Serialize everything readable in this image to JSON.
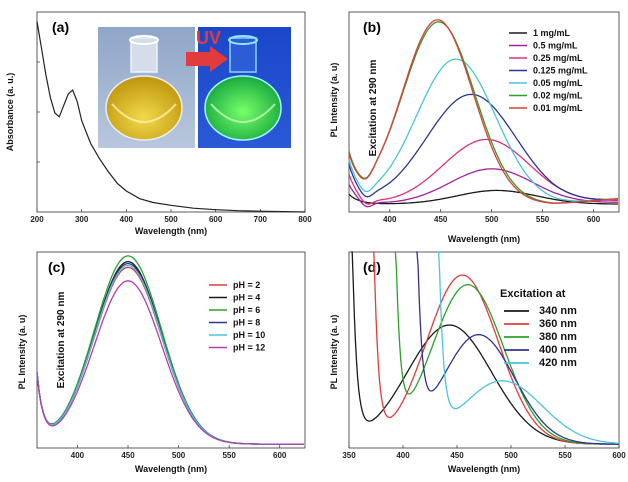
{
  "figure": {
    "panels": [
      "(a)",
      "(b)",
      "(c)",
      "(d)"
    ],
    "inset": {
      "arrow_label": "UV"
    }
  },
  "chart_data": [
    {
      "id": "a",
      "type": "line",
      "panel_label": "(a)",
      "xlabel": "Wavelength (nm)",
      "ylabel": "Absorbance (a. u.)",
      "xlim": [
        200,
        800
      ],
      "xticks": [
        200,
        300,
        400,
        500,
        600,
        700,
        800
      ],
      "series": [
        {
          "color": "#222222",
          "x": [
            200,
            210,
            220,
            230,
            240,
            250,
            260,
            270,
            280,
            290,
            300,
            320,
            340,
            360,
            380,
            400,
            430,
            460,
            500,
            550,
            600,
            650,
            700,
            800
          ],
          "y": [
            1.0,
            0.86,
            0.72,
            0.6,
            0.52,
            0.5,
            0.56,
            0.62,
            0.64,
            0.58,
            0.48,
            0.36,
            0.28,
            0.21,
            0.15,
            0.11,
            0.07,
            0.05,
            0.035,
            0.02,
            0.012,
            0.007,
            0.004,
            0.0
          ]
        }
      ]
    },
    {
      "id": "b",
      "type": "line",
      "panel_label": "(b)",
      "xlabel": "Wavelength (nm)",
      "ylabel": "PL Intensity (a. u)",
      "annotation": "Excitation at 290 nm",
      "xlim": [
        360,
        625
      ],
      "xticks": [
        400,
        450,
        500,
        550,
        600
      ],
      "legend_position": "top-right",
      "series": [
        {
          "name": "1 mg/mL",
          "color": "#1a1a1a",
          "peak": 505,
          "amp": 0.07,
          "width": 55,
          "base": 0.0
        },
        {
          "name": "0.5 mg/mL",
          "color": "#a020a0",
          "peak": 500,
          "amp": 0.18,
          "width": 58,
          "base": 0.05
        },
        {
          "name": "0.25 mg/mL",
          "color": "#e0307a",
          "peak": 495,
          "amp": 0.33,
          "width": 60,
          "base": 0.1
        },
        {
          "name": "0.125 mg/mL",
          "color": "#2f3590",
          "peak": 480,
          "amp": 0.56,
          "width": 62,
          "base": 0.14
        },
        {
          "name": "0.05 mg/mL",
          "color": "#4cc3d9",
          "peak": 465,
          "amp": 0.74,
          "width": 55,
          "base": 0.16
        },
        {
          "name": "0.02 mg/mL",
          "color": "#2ca02c",
          "peak": 448,
          "amp": 0.93,
          "width": 50,
          "base": 0.18
        },
        {
          "name": "0.01 mg/mL",
          "color": "#e23b3b",
          "peak": 447,
          "amp": 0.94,
          "width": 49,
          "base": 0.17
        }
      ]
    },
    {
      "id": "c",
      "type": "line",
      "panel_label": "(c)",
      "xlabel": "Wavelength (nm)",
      "ylabel": "PL Intensity (a. u)",
      "annotation": "Excitation at 290 nm",
      "xlim": [
        360,
        625
      ],
      "xticks": [
        400,
        450,
        500,
        550,
        600
      ],
      "legend_position": "top-right",
      "series": [
        {
          "name": "pH = 2",
          "color": "#e23b3b",
          "peak": 450,
          "amp": 0.92,
          "width": 47
        },
        {
          "name": "pH = 4",
          "color": "#1a1a1a",
          "peak": 450,
          "amp": 0.95,
          "width": 47
        },
        {
          "name": "pH = 6",
          "color": "#2ca02c",
          "peak": 450,
          "amp": 0.98,
          "width": 47
        },
        {
          "name": "pH = 8",
          "color": "#2f3590",
          "peak": 450,
          "amp": 0.94,
          "width": 47
        },
        {
          "name": "pH = 10",
          "color": "#4cc3d9",
          "peak": 450,
          "amp": 0.93,
          "width": 47
        },
        {
          "name": "pH = 12",
          "color": "#b040b0",
          "peak": 450,
          "amp": 0.85,
          "width": 47
        }
      ]
    },
    {
      "id": "d",
      "type": "line",
      "panel_label": "(d)",
      "xlabel": "Wavelength (nm)",
      "ylabel": "PL Intensity (a. u)",
      "legend_title": "Excitation at",
      "xlim": [
        350,
        600
      ],
      "xticks": [
        350,
        400,
        450,
        500,
        550,
        600
      ],
      "legend_position": "right",
      "series": [
        {
          "name": "340  nm",
          "color": "#1a1a1a",
          "ex": 340,
          "peak": 443,
          "amp": 0.62,
          "width": 55
        },
        {
          "name": "360  nm",
          "color": "#e23b3b",
          "ex": 360,
          "peak": 455,
          "amp": 0.88,
          "width": 47
        },
        {
          "name": "380  nm",
          "color": "#2ca02c",
          "ex": 380,
          "peak": 460,
          "amp": 0.83,
          "width": 47
        },
        {
          "name": "400  nm",
          "color": "#2f3590",
          "ex": 400,
          "peak": 470,
          "amp": 0.57,
          "width": 47
        },
        {
          "name": "420  nm",
          "color": "#4cc3d9",
          "ex": 420,
          "peak": 492,
          "amp": 0.33,
          "width": 52
        }
      ]
    }
  ]
}
